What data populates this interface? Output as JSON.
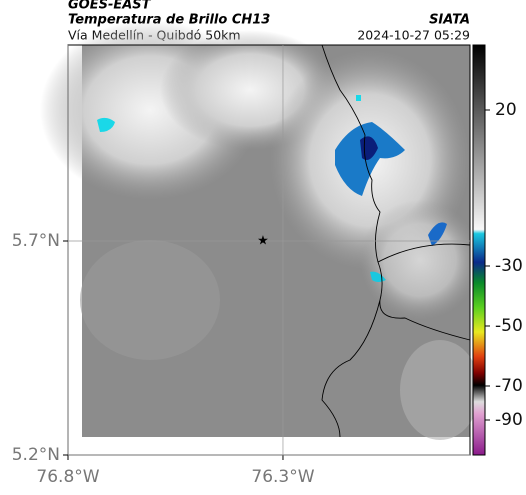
{
  "header": {
    "satellite": "GOES-EAST",
    "title": "Temperatura de Brillo CH13",
    "source": "SIATA",
    "subtitle": "Vía Medellín - Quibdó 50km",
    "datetime": "2024-10-27 05:29"
  },
  "map": {
    "xlim": [
      -76.8,
      -75.865
    ],
    "ylim": [
      5.2,
      6.158
    ],
    "xticks": [
      {
        "value": -76.8,
        "label": "76.8°W"
      },
      {
        "value": -76.3,
        "label": "76.3°W"
      }
    ],
    "yticks": [
      {
        "value": 5.2,
        "label": "5.2°N"
      },
      {
        "value": 5.7,
        "label": "5.7°N"
      }
    ]
  },
  "colorbar": {
    "ticks": [
      20,
      -30,
      -50,
      -70,
      -90
    ]
  }
}
